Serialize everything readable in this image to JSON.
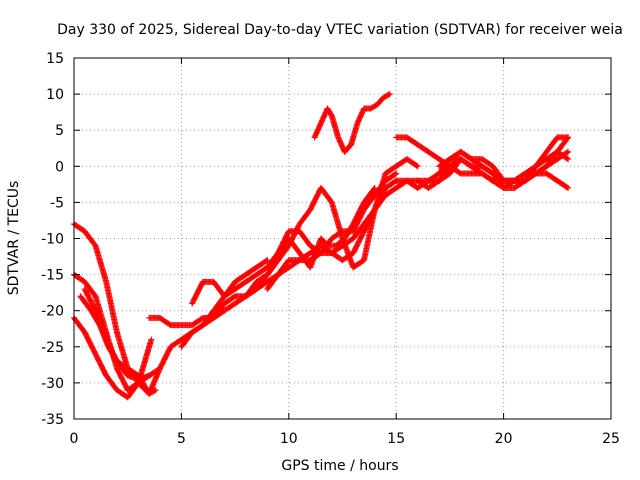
{
  "chart_data": {
    "type": "scatter",
    "title": "Day 330 of 2025, Sidereal Day-to-day VTEC variation (SDTVAR) for receiver weia",
    "xlabel": "GPS time / hours",
    "ylabel": "SDTVAR / TECUs",
    "xlim": [
      0,
      25
    ],
    "ylim": [
      -35,
      15
    ],
    "xticks": [
      0,
      5,
      10,
      15,
      20,
      25
    ],
    "yticks": [
      -35,
      -30,
      -25,
      -20,
      -15,
      -10,
      -5,
      0,
      5,
      10,
      15
    ],
    "grid": true,
    "marker": "+",
    "color": "#ff0000",
    "series": [
      {
        "x": [
          0.0,
          0.5,
          1.0,
          1.5,
          2.0,
          2.5,
          3.0,
          3.5,
          4.0,
          4.5,
          5.0,
          5.5,
          6.0
        ],
        "y": [
          -8,
          -9,
          -11,
          -16,
          -23,
          -28,
          -30,
          -31.5,
          -28,
          -25,
          -24,
          -23,
          -22
        ]
      },
      {
        "x": [
          0.0,
          0.5,
          1.0,
          1.5,
          2.0,
          2.5,
          3.0,
          3.5,
          4.0
        ],
        "y": [
          -15,
          -16,
          -18,
          -23,
          -28,
          -31,
          -30,
          -29,
          -28
        ]
      },
      {
        "x": [
          0.0,
          0.5,
          1.0,
          1.5,
          2.0,
          2.5,
          3.0,
          3.3,
          3.6
        ],
        "y": [
          -21,
          -23,
          -26,
          -29,
          -31,
          -32,
          -30,
          -27,
          -24
        ]
      },
      {
        "x": [
          0.5,
          1.0,
          1.5,
          2.0,
          2.5,
          3.0,
          3.5
        ],
        "y": [
          -17,
          -20,
          -24,
          -27,
          -29,
          -29.5,
          -29
        ]
      },
      {
        "x": [
          0.3,
          0.8,
          1.2,
          1.6,
          2.0,
          2.5,
          3.0,
          3.5,
          3.8
        ],
        "y": [
          -18,
          -20,
          -22,
          -25,
          -27,
          -28,
          -29,
          -31.5,
          -31
        ]
      },
      {
        "x": [
          3.5,
          4.0,
          4.5,
          5.0,
          5.5,
          6.0,
          6.5,
          7.0,
          7.5,
          8.0,
          8.5,
          9.0,
          9.5,
          10.0,
          10.5,
          11.0,
          11.5,
          12.0,
          12.5,
          13.0,
          13.5,
          14.0,
          14.5,
          15.0
        ],
        "y": [
          -21,
          -21,
          -22,
          -22,
          -22,
          -21,
          -21,
          -19,
          -18,
          -18,
          -17,
          -16,
          -15,
          -13,
          -13,
          -13,
          -12,
          -10,
          -9,
          -9,
          -6,
          -4,
          -2,
          -1
        ]
      },
      {
        "x": [
          5.0,
          5.5,
          6.0,
          6.5,
          7.0,
          7.5,
          8.0,
          8.5,
          9.0,
          9.5,
          10.0,
          10.5,
          11.0,
          11.5,
          11.8,
          12.2,
          12.6,
          13.0,
          13.5,
          14.0
        ],
        "y": [
          -25,
          -23,
          -22,
          -21,
          -20,
          -19,
          -18,
          -17,
          -15,
          -13,
          -10,
          -12,
          -14,
          -10,
          -11,
          -11,
          -10,
          -8,
          -5,
          -3
        ]
      },
      {
        "x": [
          6.0,
          6.5,
          7.0,
          7.5,
          8.0,
          8.5,
          9.0,
          9.5,
          10.0,
          10.5,
          11.0,
          11.5,
          12.0,
          12.5,
          13.0,
          13.5,
          14.0,
          14.5,
          15.0
        ],
        "y": [
          -22,
          -20,
          -18,
          -17,
          -16,
          -15,
          -14,
          -12,
          -9,
          -9,
          -11,
          -12,
          -12,
          -11,
          -10,
          -8,
          -6,
          -3,
          -2
        ]
      },
      {
        "x": [
          8.0,
          8.5,
          9.0,
          9.5,
          10.0,
          10.5,
          11.0,
          11.5,
          12.0,
          12.5,
          13.0,
          13.5,
          14.0,
          14.5,
          15.0,
          15.5,
          16.0
        ],
        "y": [
          -18,
          -16,
          -15,
          -13,
          -11,
          -8,
          -6,
          -3,
          -5,
          -10,
          -14,
          -13,
          -6,
          -1,
          0,
          1,
          0
        ]
      },
      {
        "x": [
          9.0,
          9.5,
          10.0,
          10.5,
          11.0,
          11.5,
          12.0,
          12.5,
          13.0,
          13.5,
          14.0,
          14.5,
          15.0,
          15.5,
          16.0,
          16.5,
          17.0,
          17.5,
          18.0
        ],
        "y": [
          -17,
          -15,
          -14,
          -13,
          -12,
          -11,
          -12,
          -13,
          -12,
          -9,
          -6,
          -4,
          -3,
          -2,
          -2,
          -3,
          -2,
          -1,
          1
        ]
      },
      {
        "x": [
          5.5,
          6.0,
          6.5,
          7.0,
          7.5,
          8.0,
          8.5,
          9.0
        ],
        "y": [
          -19,
          -16,
          -16,
          -18,
          -16,
          -15,
          -14,
          -13
        ]
      },
      {
        "x": [
          11.2,
          11.5,
          11.8,
          12.0,
          12.3,
          12.6,
          12.9,
          13.2,
          13.5,
          13.8,
          14.1,
          14.4,
          14.7
        ],
        "y": [
          4,
          6,
          8,
          7,
          4,
          2,
          3,
          6,
          8,
          8,
          8.5,
          9.5,
          10
        ]
      },
      {
        "x": [
          15.0,
          15.5,
          16.0,
          16.5,
          17.0,
          17.5,
          18.0,
          18.5,
          19.0,
          19.5,
          20.0,
          20.5,
          21.0,
          21.5,
          22.0,
          22.5,
          23.0
        ],
        "y": [
          4,
          4,
          3,
          2,
          1,
          0,
          -1,
          -1,
          -1,
          -2,
          -2,
          -2,
          -2,
          -1,
          0,
          2,
          4
        ]
      },
      {
        "x": [
          15.0,
          15.5,
          16.0,
          16.5,
          17.0,
          17.5,
          18.0,
          18.5,
          19.0,
          19.5,
          20.0,
          20.5,
          21.0,
          21.5,
          22.0,
          22.5,
          23.0
        ],
        "y": [
          -2,
          -2,
          -3,
          -2,
          -2,
          0,
          1,
          0,
          -1,
          -2,
          -3,
          -2,
          -2,
          -1,
          -1,
          -2,
          -3
        ]
      },
      {
        "x": [
          16.0,
          16.5,
          17.0,
          17.5,
          18.0,
          18.5,
          19.0,
          19.5,
          20.0,
          20.5,
          21.0,
          21.5,
          22.0,
          22.5,
          23.0
        ],
        "y": [
          -2,
          -2,
          -1,
          1,
          2,
          1,
          0,
          -1,
          -3,
          -3,
          -2,
          0,
          2,
          4,
          4
        ]
      },
      {
        "x": [
          17.0,
          17.5,
          18.0,
          18.5,
          19.0,
          19.5,
          20.0,
          20.5,
          21.0,
          21.5,
          22.0,
          22.5,
          23.0
        ],
        "y": [
          0,
          1,
          1,
          0,
          0,
          -1,
          -2,
          -2,
          -1,
          -1,
          0,
          1,
          2
        ]
      },
      {
        "x": [
          18.0,
          18.5,
          19.0,
          19.5,
          20.0,
          20.5,
          21.0,
          21.5,
          22.0,
          22.5,
          23.0
        ],
        "y": [
          2,
          1,
          1,
          0,
          -2,
          -2,
          -1,
          0,
          1,
          2,
          1
        ]
      }
    ]
  }
}
